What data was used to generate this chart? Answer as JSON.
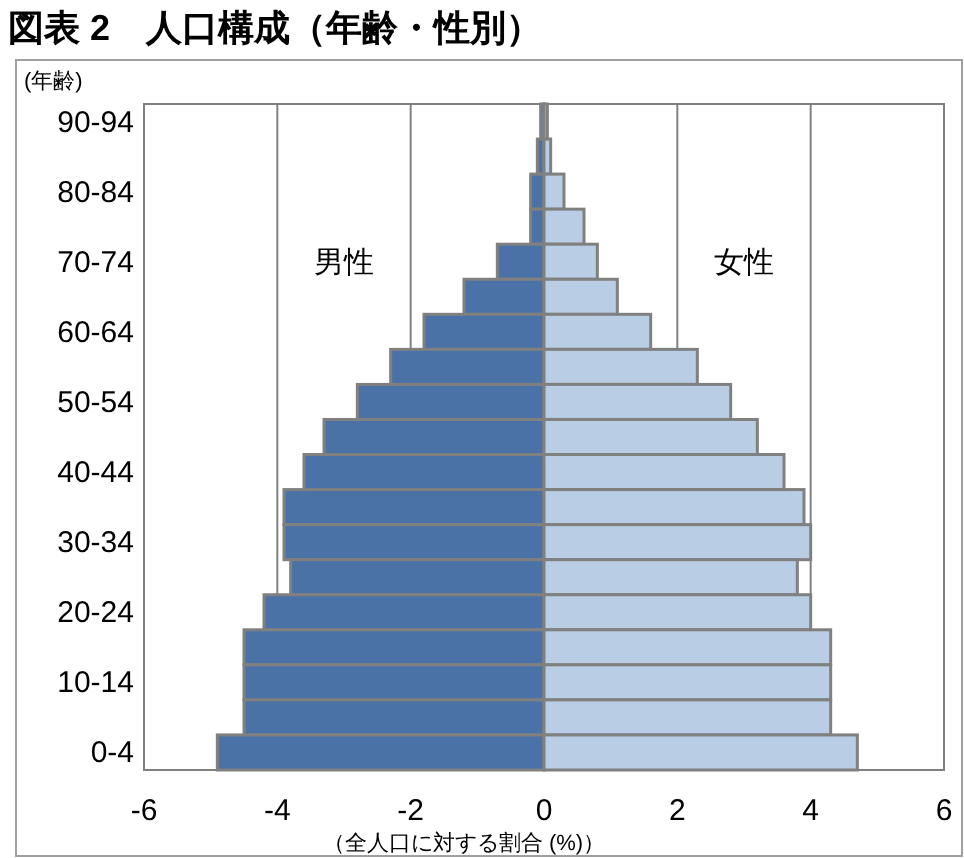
{
  "chart_data": {
    "type": "bar",
    "orientation": "horizontal",
    "title": "図表 2　人口構成（年齢・性別）",
    "ylabel": "(年齢)",
    "xlabel": "（全人口に対する割合 (%)）",
    "categories": [
      "90-94",
      null,
      "80-84",
      null,
      "70-74",
      null,
      "60-64",
      null,
      "50-54",
      null,
      "40-44",
      null,
      "30-34",
      null,
      "20-24",
      null,
      "10-14",
      null,
      "0-4"
    ],
    "series": [
      {
        "name": "男性",
        "color": "#4a72a6",
        "values": [
          -0.05,
          -0.1,
          -0.2,
          -0.2,
          -0.7,
          -1.2,
          -1.8,
          -2.3,
          -2.8,
          -3.3,
          -3.6,
          -3.9,
          -3.9,
          -3.8,
          -4.2,
          -4.5,
          -4.5,
          -4.5,
          -4.9
        ]
      },
      {
        "name": "女性",
        "color": "#b9cde4",
        "values": [
          0.05,
          0.1,
          0.3,
          0.6,
          0.8,
          1.1,
          1.6,
          2.3,
          2.8,
          3.2,
          3.6,
          3.9,
          4.0,
          3.8,
          4.0,
          4.3,
          4.3,
          4.3,
          4.7
        ]
      }
    ],
    "stacked": true,
    "xlim": [
      -6,
      6
    ],
    "xticks": [
      -6,
      -4,
      -2,
      0,
      2,
      4,
      6
    ],
    "grid": "x"
  }
}
